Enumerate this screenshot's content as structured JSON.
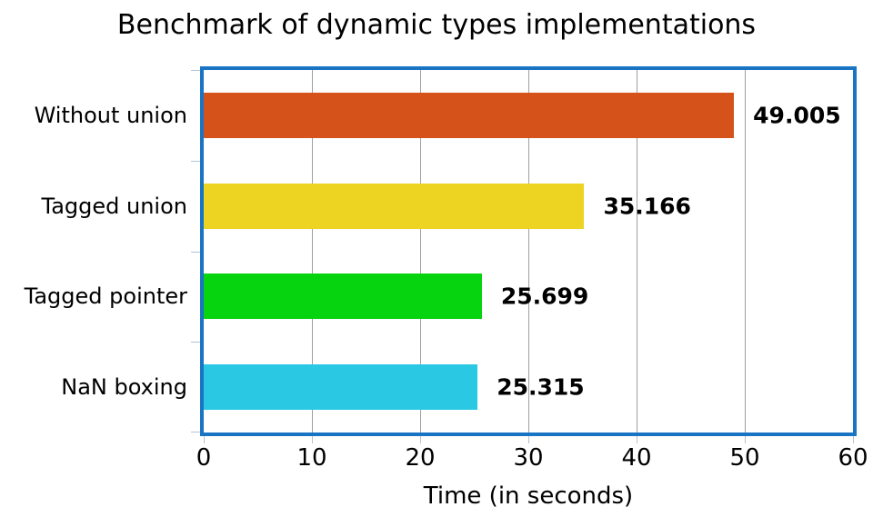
{
  "chart_data": {
    "type": "bar",
    "orientation": "horizontal",
    "title": "Benchmark of dynamic types implementations",
    "categories": [
      "Without union",
      "Tagged union",
      "Tagged pointer",
      "NaN boxing"
    ],
    "values": [
      49.005,
      35.166,
      25.699,
      25.315
    ],
    "value_labels": [
      "49.005",
      "35.166",
      "25.699",
      "25.315"
    ],
    "bar_colors": [
      "#d5521b",
      "#edd322",
      "#06d40f",
      "#2ac8e3"
    ],
    "xlabel": "Time (in seconds)",
    "xlim": [
      0,
      60
    ],
    "xticks": [
      0,
      10,
      20,
      30,
      40,
      50,
      60
    ],
    "grid": true,
    "legend": "none",
    "colors": {
      "plot_border": "#1a74c4",
      "gridline": "#9f9f9f",
      "axis_tick": "#b3c3d6",
      "text": "#000000",
      "background": "#ffffff"
    }
  }
}
